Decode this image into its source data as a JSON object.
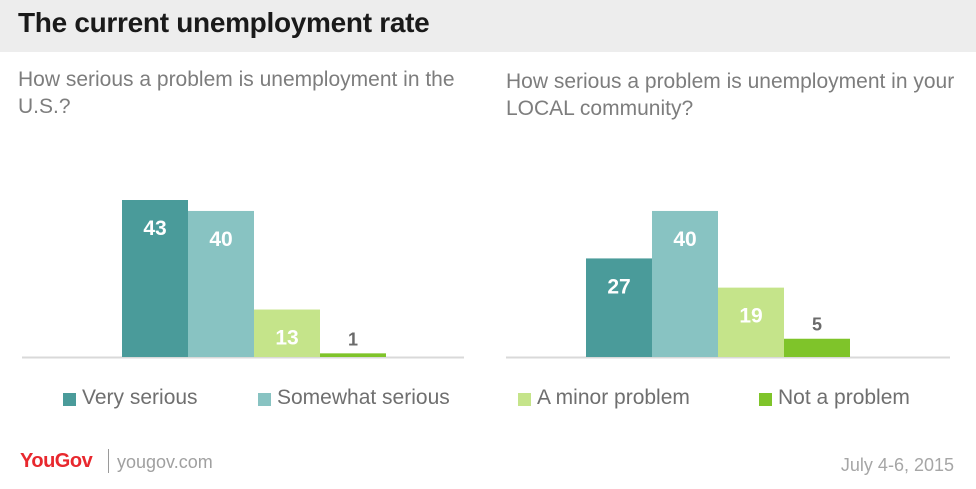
{
  "title": "The current unemployment rate",
  "colors": {
    "very_serious": "#4a9b9a",
    "somewhat_serious": "#88c3c2",
    "minor_problem": "#c5e48a",
    "not_a_problem": "#7fc42a",
    "baseline": "#d9d9d9"
  },
  "legend": [
    {
      "label": "Very serious",
      "color": "#4a9b9a"
    },
    {
      "label": "Somewhat serious",
      "color": "#88c3c2"
    },
    {
      "label": "A minor problem",
      "color": "#c5e48a"
    },
    {
      "label": "Not a problem",
      "color": "#7fc42a"
    }
  ],
  "footer": {
    "logo": "YouGov",
    "site": "yougov.com",
    "date": "July 4-6, 2015"
  },
  "chart_data": [
    {
      "type": "bar",
      "title": "How serious a problem is unemployment in the U.S.?",
      "categories": [
        "Very serious",
        "Somewhat serious",
        "A minor problem",
        "Not a problem"
      ],
      "values": [
        43,
        40,
        13,
        1
      ],
      "ylim": [
        0,
        45
      ],
      "grid": false,
      "legend_position": "bottom"
    },
    {
      "type": "bar",
      "title": "How serious a problem is unemployment in your LOCAL community?",
      "categories": [
        "Very serious",
        "Somewhat serious",
        "A minor problem",
        "Not a problem"
      ],
      "values": [
        27,
        40,
        19,
        5
      ],
      "ylim": [
        0,
        45
      ],
      "grid": false,
      "legend_position": "bottom"
    }
  ]
}
